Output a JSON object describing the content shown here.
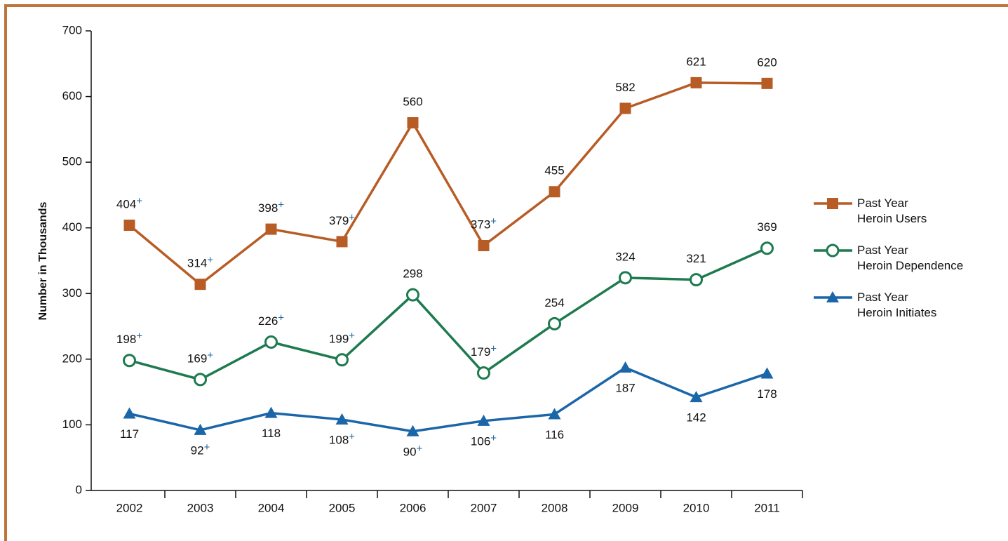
{
  "chart_data": {
    "type": "line",
    "y_label": "Number in Thousands",
    "categories": [
      "2002",
      "2003",
      "2004",
      "2005",
      "2006",
      "2007",
      "2008",
      "2009",
      "2010",
      "2011"
    ],
    "ylim": [
      0,
      700
    ],
    "yticks": [
      0,
      100,
      200,
      300,
      400,
      500,
      600,
      700
    ],
    "series": [
      {
        "name": "Past Year\nHeroin Users",
        "color": "#b85c26",
        "marker": "square",
        "values": [
          404,
          314,
          398,
          379,
          560,
          373,
          455,
          582,
          621,
          620
        ],
        "value_labels": [
          "404+",
          "314+",
          "398+",
          "379+",
          "560",
          "373+",
          "455",
          "582",
          "621",
          "620"
        ]
      },
      {
        "name": "Past Year\nHeroin Dependence",
        "color": "#1e7a4f",
        "marker": "circle",
        "values": [
          198,
          169,
          226,
          199,
          298,
          179,
          254,
          324,
          321,
          369
        ],
        "value_labels": [
          "198+",
          "169+",
          "226+",
          "199+",
          "298",
          "179+",
          "254",
          "324",
          "321",
          "369"
        ]
      },
      {
        "name": "Past Year\nHeroin Initiates",
        "color": "#1a66a8",
        "marker": "triangle",
        "values": [
          117,
          92,
          118,
          108,
          90,
          106,
          116,
          187,
          142,
          178
        ],
        "value_labels": [
          "117",
          "92+",
          "118",
          "108+",
          "90+",
          "106+",
          "116",
          "187",
          "142",
          "178"
        ]
      }
    ]
  }
}
